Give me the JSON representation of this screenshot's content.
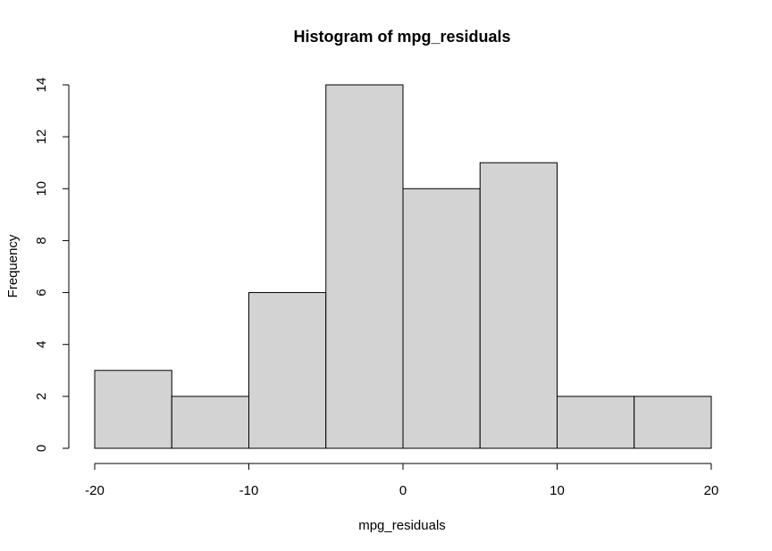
{
  "chart_data": {
    "type": "bar",
    "subtype": "histogram",
    "title": "Histogram of mpg_residuals",
    "xlabel": "mpg_residuals",
    "ylabel": "Frequency",
    "bins": [
      {
        "start": -20,
        "end": -15,
        "count": 3
      },
      {
        "start": -15,
        "end": -10,
        "count": 2
      },
      {
        "start": -10,
        "end": -5,
        "count": 6
      },
      {
        "start": -5,
        "end": 0,
        "count": 14
      },
      {
        "start": 0,
        "end": 5,
        "count": 10
      },
      {
        "start": 5,
        "end": 10,
        "count": 11
      },
      {
        "start": 10,
        "end": 15,
        "count": 2
      },
      {
        "start": 15,
        "end": 20,
        "count": 2
      }
    ],
    "xlim": [
      -20,
      20
    ],
    "ylim": [
      0,
      14
    ],
    "xticks": [
      -20,
      -10,
      0,
      10,
      20
    ],
    "yticks": [
      0,
      2,
      4,
      6,
      8,
      10,
      12,
      14
    ],
    "bar_fill": "#d3d3d3",
    "bar_stroke": "#000000",
    "grid": false,
    "legend": "none"
  }
}
